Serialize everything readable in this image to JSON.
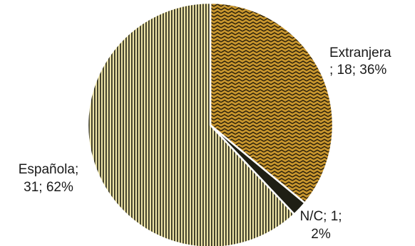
{
  "chart_data": {
    "type": "pie",
    "title": "",
    "slices": [
      {
        "category": "Extranjera",
        "value": 18,
        "percent": 36,
        "label_lines": [
          "Extranjera",
          "; 18; 36%"
        ],
        "color": "#c8962e",
        "pattern": "zigzag"
      },
      {
        "category": "N/C",
        "value": 1,
        "percent": 2,
        "label_lines": [
          "N/C; 1;",
          "2%"
        ],
        "color": "#1f1f14",
        "pattern": "solid"
      },
      {
        "category": "Española",
        "value": 31,
        "percent": 62,
        "label_lines": [
          "Española;",
          "31; 62%"
        ],
        "color": "#e8dc9a",
        "pattern": "vertical-lines"
      }
    ],
    "start_angle_deg": 0,
    "direction": "clockwise",
    "legend": "none"
  }
}
